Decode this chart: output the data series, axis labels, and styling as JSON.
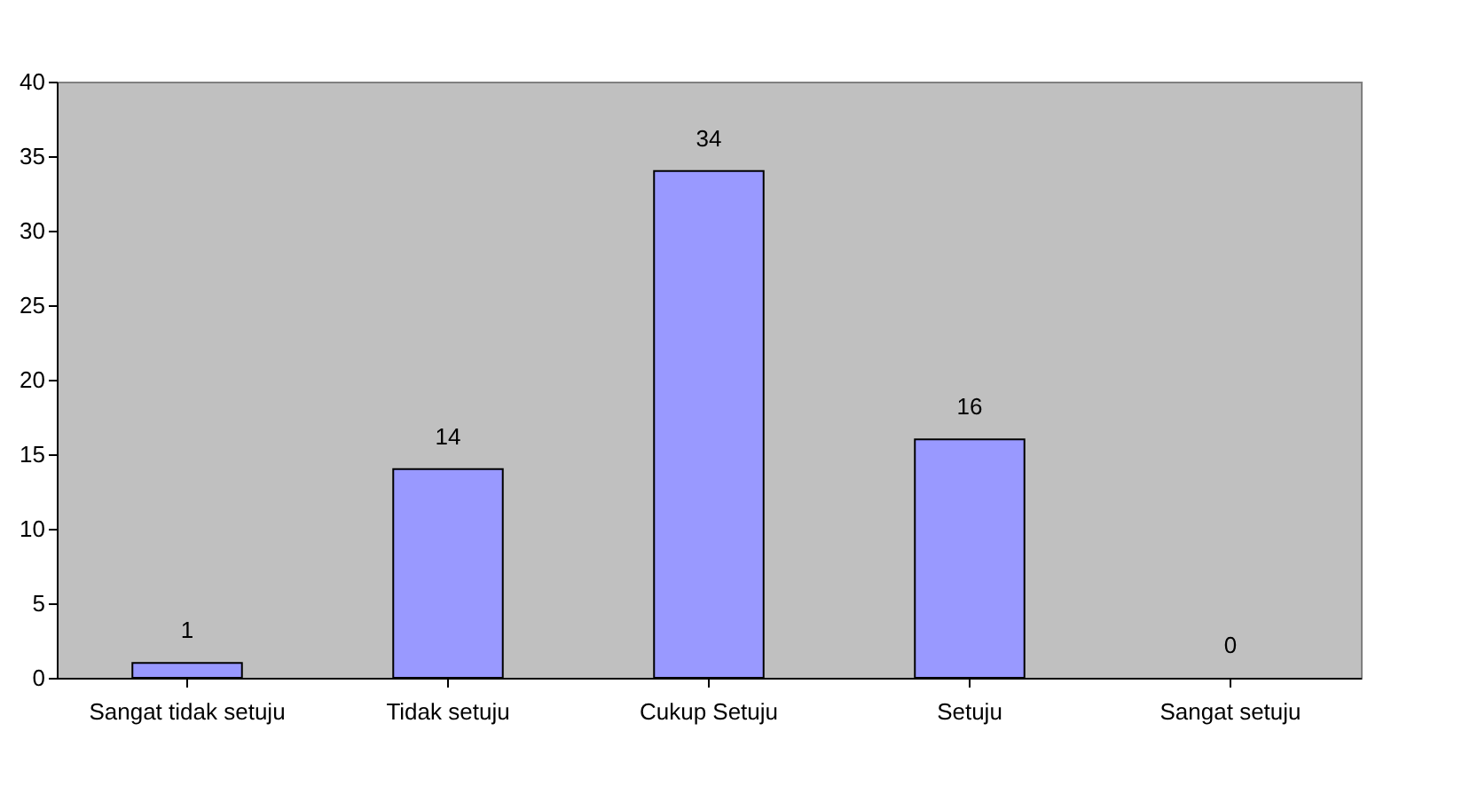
{
  "chart_data": {
    "type": "bar",
    "categories": [
      "Sangat tidak setuju",
      "Tidak setuju",
      "Cukup Setuju",
      "Setuju",
      "Sangat setuju"
    ],
    "values": [
      1,
      14,
      34,
      16,
      0
    ],
    "color": "#9999ff",
    "ylim": [
      0,
      40
    ],
    "yticks": [
      0,
      5,
      10,
      15,
      20,
      25,
      30,
      35,
      40
    ],
    "grid": false,
    "data_labels": true
  }
}
